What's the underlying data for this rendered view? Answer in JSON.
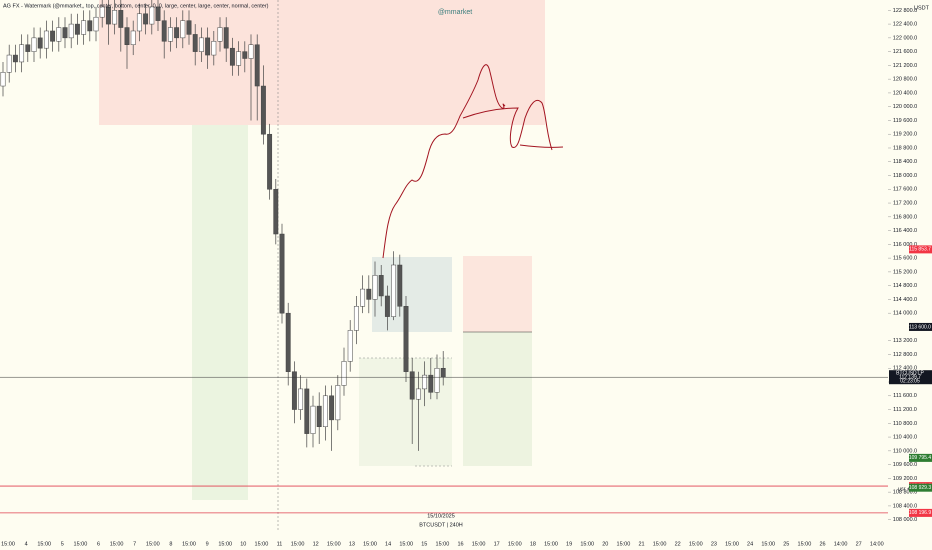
{
  "chart_data": {
    "type": "candlestick",
    "indicator_text": "AG FX - Watermark (@mmarket,, top, center, bottom, center, 0, 0, large, center, large, center, normal, center)",
    "watermark": "@mmarket",
    "currency": "USDT",
    "date_label": "15/10/2025",
    "symbol_label": "BTCUSDT | 240H",
    "scale_label": "usr +1",
    "up_color": "#ffffff",
    "down_color": "#555555",
    "outline_color": "#444444",
    "open": [
      120600,
      121000,
      121500,
      121300,
      121800,
      121600,
      122000,
      121700,
      122200,
      121900,
      122300,
      122000,
      122400,
      122100,
      122500,
      122200,
      122600,
      122900,
      122400,
      122800,
      122300,
      121800,
      122200,
      122700,
      122400,
      122900,
      122500,
      121900,
      122300,
      122000,
      122500,
      122100,
      121600,
      122000,
      121500,
      121900,
      122300,
      121700,
      121200,
      121600,
      121400,
      121800,
      120600,
      119200,
      117600,
      116300,
      114000,
      112300,
      111200,
      111800,
      110500,
      111300,
      110700,
      111600,
      110900,
      111900,
      112600,
      113500,
      114200,
      114700,
      114400,
      115100,
      114500,
      113900,
      115400,
      114200,
      112300,
      111500,
      111800,
      112200,
      111700,
      112400
    ],
    "high": [
      121300,
      121800,
      121800,
      122100,
      122100,
      122300,
      122300,
      122500,
      122500,
      122600,
      122600,
      122700,
      122700,
      122800,
      122800,
      122900,
      123300,
      123200,
      123100,
      123100,
      122600,
      122500,
      123000,
      123000,
      123200,
      123200,
      122800,
      122600,
      122600,
      122800,
      122800,
      122400,
      122300,
      122300,
      122200,
      122600,
      122600,
      122000,
      121900,
      121900,
      122100,
      122100,
      121200,
      119500,
      117900,
      116600,
      114300,
      112600,
      112200,
      112100,
      111600,
      111700,
      111900,
      111900,
      112200,
      113000,
      113800,
      114500,
      115100,
      115100,
      115500,
      115400,
      114800,
      115800,
      115700,
      114500,
      112700,
      112300,
      112600,
      112700,
      112800,
      112900
    ],
    "low": [
      120300,
      120700,
      121000,
      121000,
      121300,
      121300,
      121400,
      121400,
      121600,
      121600,
      121700,
      121700,
      121800,
      121800,
      121900,
      121900,
      122300,
      121800,
      122100,
      121600,
      121100,
      121500,
      121900,
      122100,
      122100,
      122200,
      121400,
      121600,
      121700,
      121700,
      121800,
      121200,
      121300,
      121100,
      121200,
      121600,
      121300,
      120900,
      120900,
      121000,
      119600,
      119600,
      118900,
      117300,
      116000,
      113700,
      111900,
      110800,
      110900,
      110100,
      110100,
      110200,
      110300,
      110000,
      110600,
      111600,
      112300,
      113100,
      114000,
      114000,
      113900,
      114200,
      113500,
      113800,
      113900,
      112000,
      110200,
      110000,
      111300,
      111500,
      111500,
      111900
    ],
    "close": [
      121000,
      121500,
      121300,
      121800,
      121600,
      122000,
      121700,
      122200,
      121900,
      122300,
      122000,
      122400,
      122100,
      122500,
      122200,
      122600,
      122900,
      122400,
      122800,
      122300,
      121800,
      122200,
      122700,
      122400,
      122900,
      122500,
      121900,
      122300,
      122000,
      122500,
      122100,
      121600,
      122000,
      121500,
      121900,
      122300,
      121700,
      121200,
      121600,
      121400,
      121800,
      120600,
      119200,
      117600,
      116300,
      114000,
      112300,
      111200,
      111800,
      110500,
      111300,
      110700,
      111600,
      110900,
      111900,
      112600,
      113500,
      114200,
      114700,
      114400,
      115100,
      114500,
      113900,
      115400,
      114200,
      112300,
      111500,
      111800,
      112200,
      111700,
      112400,
      112139.7
    ],
    "ylim": [
      107700,
      123100
    ],
    "yticks": [
      {
        "value": 108000,
        "label": "108 000.0"
      },
      {
        "value": 108400,
        "label": "108 400.0"
      },
      {
        "value": 108800,
        "label": "108 800.0"
      },
      {
        "value": 109200,
        "label": "109 200.0"
      },
      {
        "value": 109600,
        "label": "109 600.0"
      },
      {
        "value": 110000,
        "label": "110 000.0"
      },
      {
        "value": 110400,
        "label": "110 400.0"
      },
      {
        "value": 110800,
        "label": "110 800.0"
      },
      {
        "value": 111200,
        "label": "111 200.0"
      },
      {
        "value": 111600,
        "label": "111 600.0"
      },
      {
        "value": 112000,
        "label": "112 000.0"
      },
      {
        "value": 112400,
        "label": "112 400.0"
      },
      {
        "value": 112800,
        "label": "112 800.0"
      },
      {
        "value": 113200,
        "label": "113 200.0"
      },
      {
        "value": 114000,
        "label": "114 000.0"
      },
      {
        "value": 114400,
        "label": "114 400.0"
      },
      {
        "value": 114800,
        "label": "114 800.0"
      },
      {
        "value": 115200,
        "label": "115 200.0"
      },
      {
        "value": 115600,
        "label": "115 600.0"
      },
      {
        "value": 116000,
        "label": "116 000.0"
      },
      {
        "value": 116400,
        "label": "116 400.0"
      },
      {
        "value": 116800,
        "label": "116 800.0"
      },
      {
        "value": 117200,
        "label": "117 200.0"
      },
      {
        "value": 117600,
        "label": "117 600.0"
      },
      {
        "value": 118000,
        "label": "118 000.0"
      },
      {
        "value": 118400,
        "label": "118 400.0"
      },
      {
        "value": 118800,
        "label": "118 800.0"
      },
      {
        "value": 119200,
        "label": "119 200.0"
      },
      {
        "value": 119600,
        "label": "119 600.0"
      },
      {
        "value": 120000,
        "label": "120 000.0"
      },
      {
        "value": 120400,
        "label": "120 400.0"
      },
      {
        "value": 120800,
        "label": "120 800.0"
      },
      {
        "value": 121200,
        "label": "121 200.0"
      },
      {
        "value": 121600,
        "label": "121 600.0"
      },
      {
        "value": 122000,
        "label": "122 000.0"
      },
      {
        "value": 122400,
        "label": "122 400.0"
      },
      {
        "value": 122800,
        "label": "122 800.0"
      }
    ],
    "xticks": [
      "15:00",
      "4",
      "15:00",
      "5",
      "15:00",
      "6",
      "15:00",
      "7",
      "15:00",
      "8",
      "15:00",
      "9",
      "15:00",
      "10",
      "15:00",
      "11",
      "15:00",
      "12",
      "15:00",
      "13",
      "15:00",
      "14",
      "15:00",
      "15",
      "15:00",
      "16",
      "15:00",
      "17",
      "15:00",
      "18",
      "15:00",
      "19",
      "15:00",
      "20",
      "15:00",
      "21",
      "15:00",
      "22",
      "15:00",
      "23",
      "15:00",
      "24",
      "15:00",
      "25",
      "15:00",
      "26",
      "14:00",
      "27",
      "14:00"
    ],
    "price_tags": [
      {
        "value": 115853.7,
        "label": "115 853.7",
        "color": "#f23645"
      },
      {
        "value": 113600,
        "label": "113 600.0",
        "color": "#131722"
      },
      {
        "value": 112139.7,
        "label": "112 139.7",
        "color": "#131722",
        "symbol": "BTCUSDT.P",
        "countdown": "02:23:05"
      },
      {
        "value": 109795.4,
        "label": "109 795.4",
        "color": "#2e7d32"
      },
      {
        "value": 108976.2,
        "label": "108 976.2",
        "color": "#f23645"
      },
      {
        "value": 108929.3,
        "label": "108 929.3",
        "color": "#2e7d32"
      },
      {
        "value": 108196.9,
        "label": "108 196.9",
        "color": "#f23645"
      }
    ],
    "red_lines": [
      108976.2,
      108196.9
    ]
  }
}
